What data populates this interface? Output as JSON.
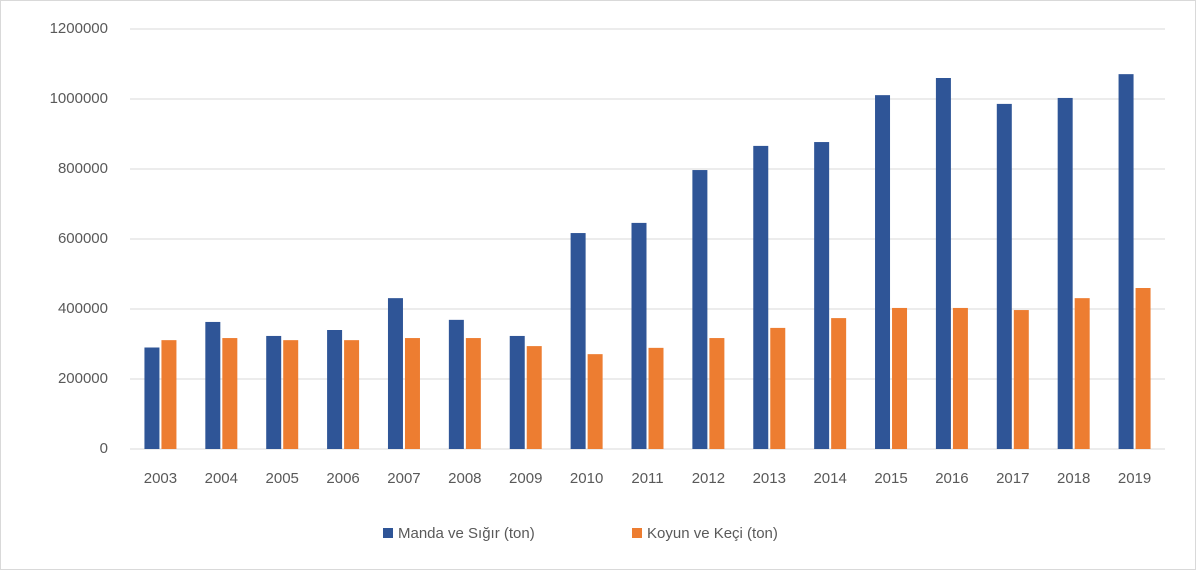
{
  "chart_data": {
    "type": "bar",
    "categories": [
      "2003",
      "2004",
      "2005",
      "2006",
      "2007",
      "2008",
      "2009",
      "2010",
      "2011",
      "2012",
      "2013",
      "2014",
      "2015",
      "2016",
      "2017",
      "2018",
      "2019"
    ],
    "series": [
      {
        "name": "Manda ve Sığır (ton)",
        "color": "#2f5597",
        "values": [
          290000,
          363000,
          323000,
          340000,
          431000,
          369000,
          323000,
          617000,
          646000,
          797000,
          866000,
          877000,
          1011000,
          1060000,
          986000,
          1003000,
          1071000
        ]
      },
      {
        "name": "Koyun ve Keçi (ton)",
        "color": "#ed7d31",
        "values": [
          311000,
          317000,
          311000,
          311000,
          317000,
          317000,
          294000,
          271000,
          289000,
          317000,
          346000,
          374000,
          403000,
          403000,
          397000,
          431000,
          460000
        ]
      }
    ],
    "ylim": [
      0,
      1200000
    ],
    "yticks": [
      0,
      200000,
      400000,
      600000,
      800000,
      1000000,
      1200000
    ],
    "grid": true,
    "legend": "bottom"
  }
}
